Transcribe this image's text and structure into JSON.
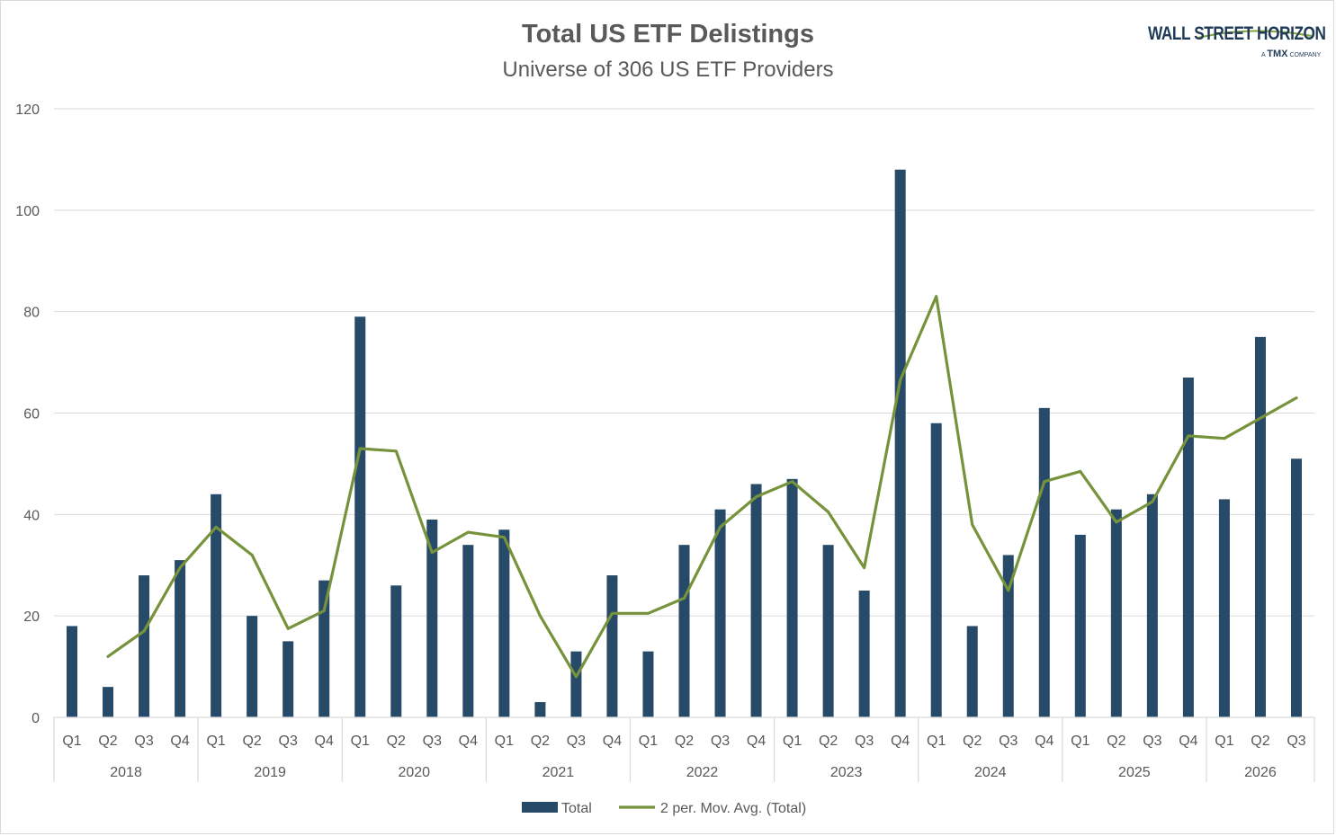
{
  "chart_data": {
    "type": "bar",
    "title": "Total US ETF Delistings",
    "subtitle": "Universe of 306 US ETF Providers",
    "ylim": [
      0,
      120
    ],
    "yticks": [
      0,
      20,
      40,
      60,
      80,
      100,
      120
    ],
    "grid": true,
    "legend_position": "bottom",
    "quarters": [
      "Q1",
      "Q2",
      "Q3",
      "Q4",
      "Q1",
      "Q2",
      "Q3",
      "Q4",
      "Q1",
      "Q2",
      "Q3",
      "Q4",
      "Q1",
      "Q2",
      "Q3",
      "Q4",
      "Q1",
      "Q2",
      "Q3",
      "Q4",
      "Q1",
      "Q2",
      "Q3",
      "Q4",
      "Q1",
      "Q2",
      "Q3",
      "Q4",
      "Q1",
      "Q2",
      "Q3",
      "Q4",
      "Q1",
      "Q2",
      "Q3"
    ],
    "years": [
      {
        "label": "2018",
        "quarters": 4
      },
      {
        "label": "2019",
        "quarters": 4
      },
      {
        "label": "2020",
        "quarters": 4
      },
      {
        "label": "2021",
        "quarters": 4
      },
      {
        "label": "2022",
        "quarters": 4
      },
      {
        "label": "2023",
        "quarters": 4
      },
      {
        "label": "2024",
        "quarters": 4
      },
      {
        "label": "2025",
        "quarters": 4
      },
      {
        "label": "2026",
        "quarters": 3
      }
    ],
    "series": [
      {
        "name": "Total",
        "type": "bar",
        "color": "#264a67",
        "values": [
          18,
          6,
          28,
          31,
          44,
          20,
          15,
          27,
          79,
          26,
          39,
          34,
          37,
          3,
          13,
          28,
          13,
          34,
          41,
          46,
          47,
          34,
          25,
          108,
          58,
          18,
          32,
          61,
          36,
          41,
          44,
          67,
          43,
          75,
          51
        ]
      },
      {
        "name": "2 per. Mov. Avg. (Total)",
        "type": "line",
        "color": "#76933c",
        "values": [
          null,
          12,
          17,
          29.5,
          37.5,
          32,
          17.5,
          21,
          53,
          52.5,
          32.5,
          36.5,
          35.5,
          20,
          8,
          20.5,
          20.5,
          23.5,
          37.5,
          43.5,
          46.5,
          40.5,
          29.5,
          66.5,
          83,
          38,
          25,
          46.5,
          48.5,
          38.5,
          42.5,
          55.5,
          55,
          59,
          63
        ]
      }
    ]
  },
  "logo": {
    "name": "WALL STREET HORIZON",
    "tagline_prefix": "A",
    "tagline_brand": "TMX",
    "tagline_suffix": "COMPANY"
  },
  "colors": {
    "bar": "#264a67",
    "line": "#76933c",
    "grid": "#d9d9d9",
    "text": "#595959"
  }
}
